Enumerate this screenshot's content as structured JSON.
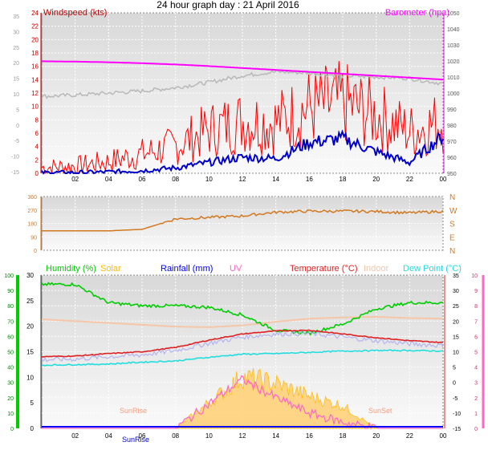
{
  "page_title": "24 hour graph day : 21 April 2016",
  "colors": {
    "wind": "#ff0000",
    "wind_dark": "#c00000",
    "gust": "#cc0000",
    "speed_blue": "#0000cc",
    "baro": "#ff00ff",
    "grey": "#b8b8b8",
    "dir": "#d2781e",
    "humidity": "#00cc00",
    "solar": "#ffb700",
    "solar_fill": "#ffd27a",
    "rain": "#0000ff",
    "uv": "#ff66cc",
    "temp": "#dd2020",
    "indoor": "#f5c6a8",
    "dew": "#22dddd",
    "plot_bg": "#dcdcdc",
    "plot_bg_light": "#f4f4f4"
  },
  "x_ticks": [
    "02",
    "04",
    "06",
    "08",
    "10",
    "12",
    "14",
    "16",
    "18",
    "20",
    "22",
    "00"
  ],
  "chart_data": [
    {
      "type": "line",
      "panel": "wind_barometer",
      "legend": [
        "Windspeed (kts)",
        "Barometer (hpa)"
      ],
      "left_axis": {
        "ticks": [
          "0",
          "2",
          "4",
          "6",
          "8",
          "10",
          "12",
          "14",
          "16",
          "18",
          "20",
          "22",
          "24"
        ],
        "ylim": [
          0,
          24
        ]
      },
      "outer_left_axis": {
        "ticks": [
          "-15",
          "-10",
          "-5",
          "0",
          "5",
          "10",
          "15",
          "20",
          "25",
          "30",
          "35"
        ]
      },
      "right_axis": {
        "ticks": [
          "950",
          "960",
          "970",
          "980",
          "990",
          "1000",
          "1010",
          "1020",
          "1030",
          "1040",
          "1050"
        ],
        "ylim": [
          950,
          1050
        ]
      },
      "x": [
        "00",
        "02",
        "04",
        "06",
        "08",
        "10",
        "12",
        "14",
        "16",
        "18",
        "20",
        "22",
        "00"
      ],
      "series": [
        {
          "name": "Barometer (hpa)",
          "axis": "right",
          "values": [
            1019.8,
            1019.6,
            1019.2,
            1018.6,
            1017.8,
            1016.8,
            1015.6,
            1014.4,
            1013.2,
            1012.0,
            1010.8,
            1009.6,
            1008.4
          ]
        },
        {
          "axis": "left",
          "values": [
            11.5,
            11.7,
            12.0,
            12.3,
            12.8,
            13.6,
            14.6,
            15.2,
            15.0,
            14.6,
            14.4,
            14.2,
            13.4
          ]
        },
        {
          "axis": "left",
          "values": [
            0.6,
            0.8,
            1.4,
            2.4,
            3.5,
            5.6,
            6.8,
            6.6,
            8.6,
            9.2,
            7.6,
            5.4,
            6.8
          ]
        },
        {
          "axis": "left",
          "values": [
            0.1,
            0.1,
            0.2,
            0.4,
            0.8,
            1.6,
            2.4,
            2.2,
            4.6,
            5.2,
            3.2,
            1.6,
            5.6
          ]
        }
      ]
    },
    {
      "type": "line",
      "panel": "wind_direction",
      "left_axis": {
        "ticks": [
          "0",
          "90",
          "180",
          "270",
          "360"
        ],
        "ylim": [
          0,
          360
        ]
      },
      "right_labels": [
        "N",
        "E",
        "S",
        "W",
        "N"
      ],
      "x": [
        "00",
        "02",
        "04",
        "06",
        "08",
        "10",
        "12",
        "14",
        "16",
        "18",
        "20",
        "22",
        "00"
      ],
      "series": [
        {
          "values": [
            130,
            130,
            130,
            140,
            210,
            220,
            230,
            255,
            262,
            262,
            260,
            250,
            262
          ]
        }
      ]
    },
    {
      "type": "area",
      "panel": "temperature_humidity_solar",
      "legend": [
        "Humidity (%)",
        "Solar",
        "Rainfall (mm)",
        "UV",
        "Temperature (°C)",
        "Indoor",
        "Dew Point (°C)"
      ],
      "humidity_axis": {
        "ticks": [
          "0",
          "10",
          "20",
          "30",
          "40",
          "50",
          "60",
          "70",
          "80",
          "90",
          "100"
        ],
        "ylim": [
          0,
          100
        ]
      },
      "temp_axis": {
        "ticks": [
          "-15",
          "-10",
          "-5",
          "0",
          "5",
          "10",
          "15",
          "20",
          "25",
          "30",
          "35"
        ],
        "ylim": [
          -15,
          35
        ]
      },
      "rain_axis": {
        "ticks": [
          "0",
          "5",
          "10",
          "15",
          "20",
          "25",
          "30"
        ]
      },
      "uv_axis": {
        "ticks": [
          "0",
          "1",
          "2",
          "3",
          "4",
          "5",
          "6",
          "7",
          "8",
          "9",
          "10"
        ]
      },
      "annotations": [
        "SunRise",
        "SunSet"
      ],
      "x": [
        "00",
        "02",
        "04",
        "06",
        "08",
        "10",
        "12",
        "14",
        "16",
        "18",
        "20",
        "22",
        "00"
      ],
      "series": [
        {
          "name": "Humidity (%)",
          "axis": "humidity",
          "values": [
            94,
            94,
            82,
            80,
            80,
            79,
            74,
            64,
            62,
            68,
            78,
            82,
            82
          ]
        },
        {
          "name": "Temperature (°C)",
          "axis": "temp",
          "values": [
            8.4,
            8.6,
            9.4,
            10.0,
            11.4,
            13.8,
            15.8,
            16.8,
            17.0,
            15.8,
            14.6,
            13.6,
            13.0
          ]
        },
        {
          "name": "Dew Point (°C)",
          "axis": "temp",
          "values": [
            5.6,
            5.8,
            6.0,
            6.6,
            7.0,
            8.2,
            9.2,
            9.4,
            9.8,
            10.2,
            10.4,
            10.4,
            10.2
          ]
        },
        {
          "name": "Indoor",
          "axis": "temp",
          "values": [
            20.6,
            20.0,
            19.4,
            18.8,
            18.2,
            18.0,
            18.6,
            19.8,
            20.8,
            21.2,
            21.4,
            21.0,
            20.8
          ]
        },
        {
          "name": "Solar",
          "axis": "temp",
          "values": [
            -15,
            -15,
            -15,
            -15,
            -15,
            -7,
            1,
            -1,
            -5,
            -8,
            -15,
            -15,
            -15
          ]
        },
        {
          "name": "UV",
          "axis": "uv",
          "values": [
            0,
            0,
            0,
            0,
            0,
            1.6,
            3.2,
            2.0,
            1.0,
            0.4,
            0,
            0,
            0
          ]
        },
        {
          "name": "Rainfall (mm)",
          "axis": "rain",
          "values": [
            0,
            0,
            0,
            0,
            0,
            0,
            0,
            0,
            0,
            0,
            0,
            0,
            0
          ]
        }
      ]
    }
  ]
}
